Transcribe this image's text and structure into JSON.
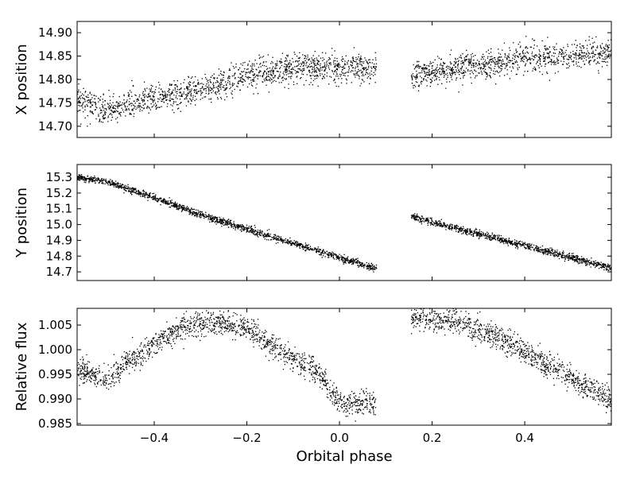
{
  "chart_data": {
    "type": "scatter",
    "xlabel": "Orbital phase",
    "xlim": [
      -0.5665,
      0.587
    ],
    "xticks": [
      -0.4,
      -0.2,
      0.0,
      0.2,
      0.4
    ],
    "xtick_labels": [
      "−0.4",
      "−0.2",
      "0.0",
      "0.2",
      "0.4"
    ],
    "gap": [
      0.08,
      0.155
    ],
    "marker_color": "#000000",
    "panels": [
      {
        "ylabel": "X position",
        "ylim": [
          14.676,
          14.924
        ],
        "yticks": [
          14.7,
          14.75,
          14.8,
          14.85,
          14.9
        ],
        "ytick_labels": [
          "14.70",
          "14.75",
          "14.80",
          "14.85",
          "14.90"
        ],
        "noise": 0.015,
        "trend": [
          [
            [
              -0.566,
              14.76
            ],
            [
              -0.5,
              14.73
            ],
            [
              -0.45,
              14.75
            ],
            [
              -0.3,
              14.775
            ],
            [
              -0.2,
              14.81
            ],
            [
              -0.1,
              14.825
            ],
            [
              0.08,
              14.825
            ]
          ],
          [
            [
              0.155,
              14.81
            ],
            [
              0.3,
              14.83
            ],
            [
              0.4,
              14.845
            ],
            [
              0.587,
              14.855
            ]
          ]
        ]
      },
      {
        "ylabel": "Y position",
        "ylim": [
          14.645,
          15.381
        ],
        "yticks": [
          14.7,
          14.8,
          14.9,
          15.0,
          15.1,
          15.2,
          15.3
        ],
        "ytick_labels": [
          "14.7",
          "14.8",
          "14.9",
          "15.0",
          "15.1",
          "15.2",
          "15.3"
        ],
        "noise": 0.011,
        "trend": [
          [
            [
              -0.566,
              15.3
            ],
            [
              -0.5,
              15.27
            ],
            [
              -0.4,
              15.17
            ],
            [
              -0.3,
              15.06
            ],
            [
              0.08,
              14.72
            ]
          ],
          [
            [
              0.155,
              15.05
            ],
            [
              0.587,
              14.725
            ]
          ]
        ]
      },
      {
        "ylabel": "Relative flux",
        "ylim": [
          0.98468,
          1.00839
        ],
        "yticks": [
          0.985,
          0.99,
          0.995,
          1.0,
          1.005
        ],
        "ytick_labels": [
          "0.985",
          "0.990",
          "0.995",
          "1.000",
          "1.005"
        ],
        "noise": 0.0012,
        "trend": [
          [
            [
              -0.566,
              0.996
            ],
            [
              -0.5,
              0.994
            ],
            [
              -0.45,
              0.998
            ],
            [
              -0.35,
              1.004
            ],
            [
              -0.28,
              1.0055
            ],
            [
              -0.2,
              1.0045
            ],
            [
              -0.15,
              1.001
            ],
            [
              -0.1,
              0.998
            ],
            [
              -0.05,
              0.996
            ],
            [
              0.0,
              0.989
            ],
            [
              0.08,
              0.989
            ]
          ],
          [
            [
              0.155,
              1.006
            ],
            [
              0.25,
              1.006
            ],
            [
              0.35,
              1.002
            ],
            [
              0.45,
              0.997
            ],
            [
              0.587,
              0.99
            ]
          ]
        ]
      }
    ]
  }
}
